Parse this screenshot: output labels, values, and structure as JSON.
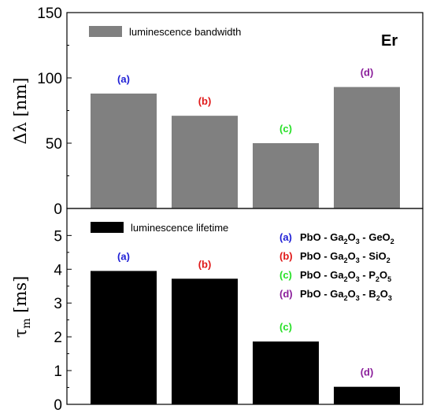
{
  "chart_data": [
    {
      "type": "bar",
      "ylabel": "Δλ [nm]",
      "ylim": [
        0,
        150
      ],
      "yticks": [
        "0",
        "50",
        "100",
        "150"
      ],
      "categories": [
        "(a)",
        "(b)",
        "(c)",
        "(d)"
      ],
      "category_colors": [
        "#1f1fd6",
        "#e01919",
        "#27e027",
        "#8b1f9b"
      ],
      "bar_color": "#808080",
      "series": [
        {
          "name": "luminescence bandwidth",
          "values": [
            88,
            71,
            50,
            93
          ]
        }
      ],
      "annotation": "Er"
    },
    {
      "type": "bar",
      "ylabel": "τm [ms]",
      "ylim": [
        0,
        5.8
      ],
      "yticks": [
        "0",
        "1",
        "2",
        "3",
        "4",
        "5"
      ],
      "categories": [
        "(a)",
        "(b)",
        "(c)",
        "(d)"
      ],
      "category_colors": [
        "#1f1fd6",
        "#e01919",
        "#27e027",
        "#8b1f9b"
      ],
      "bar_color": "#000000",
      "series": [
        {
          "name": "luminescence lifetime",
          "values": [
            3.95,
            3.72,
            1.86,
            0.52
          ]
        }
      ]
    }
  ],
  "compositions": [
    {
      "key": "(a)",
      "text": "PbO - Ga2O3 - GeO2"
    },
    {
      "key": "(b)",
      "text": "PbO - Ga2O3 - SiO2"
    },
    {
      "key": "(c)",
      "text": "PbO - Ga2O3 - P2O5"
    },
    {
      "key": "(d)",
      "text": "PbO - Ga2O3 - B2O3"
    }
  ]
}
